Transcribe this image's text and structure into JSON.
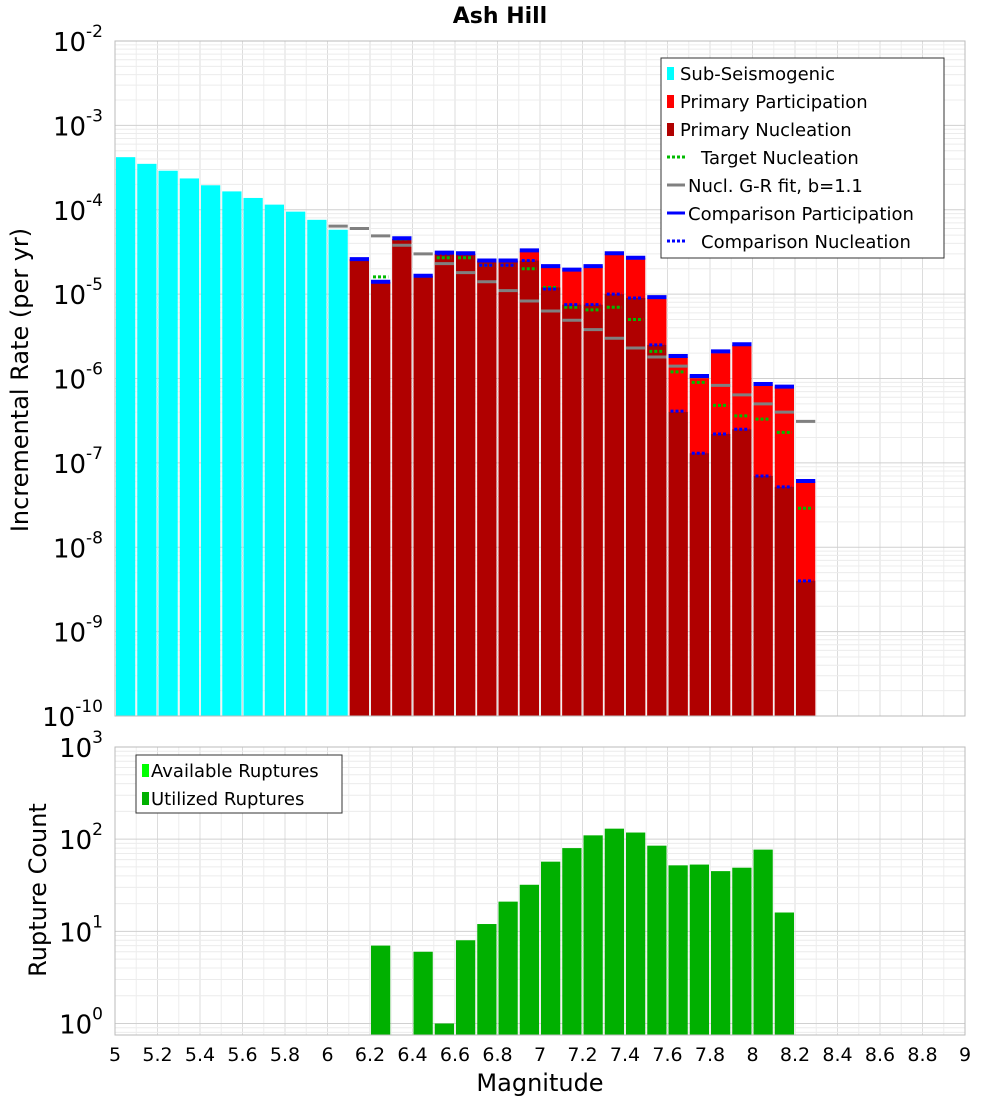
{
  "chart_data": [
    {
      "type": "bar",
      "title": "Ash Hill",
      "ylabel": "Incremental Rate (per yr)",
      "xlabel": "",
      "yscale": "log",
      "ylim": [
        1e-10,
        0.01
      ],
      "xlim": [
        5,
        9
      ],
      "grid": true,
      "legend_position": "top-right",
      "y_tick_labels": [
        {
          "base": "10",
          "exp": "-10",
          "value": 1e-10
        },
        {
          "base": "10",
          "exp": "-9",
          "value": 1e-09
        },
        {
          "base": "10",
          "exp": "-8",
          "value": 1e-08
        },
        {
          "base": "10",
          "exp": "-7",
          "value": 1e-07
        },
        {
          "base": "10",
          "exp": "-6",
          "value": 1e-06
        },
        {
          "base": "10",
          "exp": "-5",
          "value": 1e-05
        },
        {
          "base": "10",
          "exp": "-4",
          "value": 0.0001
        },
        {
          "base": "10",
          "exp": "-3",
          "value": 0.001
        },
        {
          "base": "10",
          "exp": "-2",
          "value": 0.01
        }
      ],
      "colors": {
        "sub_seismogenic": "#00ffff",
        "primary_participation": "#ff0000",
        "primary_nucleation": "#b00000",
        "target_nucleation": "#00bb00",
        "gr_fit": "#808080",
        "comparison": "#0000ff"
      },
      "bin_width": 0.1,
      "legend": [
        {
          "label": "Sub-Seismogenic",
          "kind": "box",
          "color": "#00ffff"
        },
        {
          "label": "Primary Participation",
          "kind": "box",
          "color": "#ff0000"
        },
        {
          "label": "Primary Nucleation",
          "kind": "box",
          "color": "#b00000"
        },
        {
          "label": "Target Nucleation",
          "kind": "dot",
          "color": "#00bb00"
        },
        {
          "label": "Nucl. G-R fit, b=1.1",
          "kind": "line",
          "color": "#808080"
        },
        {
          "label": "Comparison Participation",
          "kind": "line",
          "color": "#0000ff"
        },
        {
          "label": "Comparison Nucleation",
          "kind": "dot",
          "color": "#0000ff"
        }
      ],
      "series": [
        {
          "name": "Sub-Seismogenic",
          "x": [
            5.05,
            5.15,
            5.25,
            5.35,
            5.45,
            5.55,
            5.65,
            5.75,
            5.85,
            5.95,
            6.05
          ],
          "values": [
            0.00042,
            0.00035,
            0.00029,
            0.000235,
            0.000195,
            0.000165,
            0.000138,
            0.000115,
            9.5e-05,
            7.6e-05,
            5.8e-05
          ]
        },
        {
          "name": "Primary Participation",
          "x": [
            6.15,
            6.25,
            6.35,
            6.45,
            6.55,
            6.65,
            6.75,
            6.85,
            6.95,
            7.05,
            7.15,
            7.25,
            7.35,
            7.45,
            7.55,
            7.65,
            7.75,
            7.85,
            7.95,
            8.05,
            8.15,
            8.25
          ],
          "values": [
            2.6e-05,
            1.4e-05,
            4.5e-05,
            1.65e-05,
            3e-05,
            3e-05,
            2.5e-05,
            2.5e-05,
            3.2e-05,
            2.1e-05,
            1.95e-05,
            2.15e-05,
            3e-05,
            2.7e-05,
            9e-06,
            1.8e-06,
            1.05e-06,
            2e-06,
            2.5e-06,
            8.5e-07,
            8e-07,
            6e-08
          ]
        },
        {
          "name": "Primary Nucleation",
          "x": [
            6.15,
            6.25,
            6.35,
            6.45,
            6.55,
            6.65,
            6.75,
            6.85,
            6.95,
            7.05,
            7.15,
            7.25,
            7.35,
            7.45,
            7.55,
            7.65,
            7.75,
            7.85,
            7.95,
            8.05,
            8.15,
            8.25
          ],
          "values": [
            2.6e-05,
            1.4e-05,
            4.5e-05,
            1.65e-05,
            3e-05,
            3e-05,
            2.5e-05,
            2.5e-05,
            2.5e-05,
            1.2e-05,
            7.5e-06,
            7.5e-06,
            1e-05,
            9e-06,
            2.5e-06,
            4e-07,
            1.3e-07,
            2.2e-07,
            2.5e-07,
            7e-08,
            5.2e-08,
            4e-09
          ]
        },
        {
          "name": "Target Nucleation",
          "x": [
            6.15,
            6.25,
            6.35,
            6.45,
            6.55,
            6.65,
            6.75,
            6.85,
            6.95,
            7.05,
            7.15,
            7.25,
            7.35,
            7.45,
            7.55,
            7.65,
            7.75,
            7.85,
            7.95,
            8.05,
            8.15,
            8.25
          ],
          "values": [
            2.6e-05,
            1.6e-05,
            4.5e-05,
            1.65e-05,
            2.7e-05,
            2.7e-05,
            2.2e-05,
            2.2e-05,
            2e-05,
            1.2e-05,
            7e-06,
            6.5e-06,
            7e-06,
            5e-06,
            2.1e-06,
            1.2e-06,
            9e-07,
            4.8e-07,
            3.6e-07,
            3.3e-07,
            2.3e-07,
            2.9e-08
          ]
        },
        {
          "name": "Nucl. G-R fit, b=1.1",
          "x": [
            6.05,
            6.15,
            6.25,
            6.35,
            6.45,
            6.55,
            6.65,
            6.75,
            6.85,
            6.95,
            7.05,
            7.15,
            7.25,
            7.35,
            7.45,
            7.55,
            7.65,
            7.75,
            7.85,
            7.95,
            8.05,
            8.15,
            8.25
          ],
          "values": [
            6.4e-05,
            6e-05,
            4.9e-05,
            3.8e-05,
            3e-05,
            2.3e-05,
            1.8e-05,
            1.4e-05,
            1.1e-05,
            8.3e-06,
            6.3e-06,
            4.9e-06,
            3.8e-06,
            3e-06,
            2.3e-06,
            1.8e-06,
            1.4e-06,
            1.05e-06,
            8.3e-07,
            6.4e-07,
            5e-07,
            4e-07,
            3.1e-07
          ]
        },
        {
          "name": "Comparison Participation",
          "x": [
            6.15,
            6.25,
            6.35,
            6.45,
            6.55,
            6.65,
            6.75,
            6.85,
            6.95,
            7.05,
            7.15,
            7.25,
            7.35,
            7.45,
            7.55,
            7.65,
            7.75,
            7.85,
            7.95,
            8.05,
            8.15,
            8.25
          ],
          "values": [
            2.6e-05,
            1.4e-05,
            4.6e-05,
            1.65e-05,
            3.1e-05,
            3.05e-05,
            2.5e-05,
            2.5e-05,
            3.3e-05,
            2.15e-05,
            1.95e-05,
            2.15e-05,
            3.05e-05,
            2.7e-05,
            9.2e-06,
            1.85e-06,
            1.07e-06,
            2.1e-06,
            2.55e-06,
            8.6e-07,
            8e-07,
            6.1e-08
          ]
        },
        {
          "name": "Comparison Nucleation",
          "x": [
            6.15,
            6.25,
            6.35,
            6.45,
            6.55,
            6.65,
            6.75,
            6.85,
            6.95,
            7.05,
            7.15,
            7.25,
            7.35,
            7.45,
            7.55,
            7.65,
            7.75,
            7.85,
            7.95,
            8.05,
            8.15,
            8.25
          ],
          "values": [
            2.6e-05,
            1.4e-05,
            4.6e-05,
            1.65e-05,
            3e-05,
            3e-05,
            2.2e-05,
            2.2e-05,
            2.5e-05,
            1.15e-05,
            7.5e-06,
            7.5e-06,
            1e-05,
            9e-06,
            2.5e-06,
            4.1e-07,
            1.3e-07,
            2.2e-07,
            2.5e-07,
            7e-08,
            5.2e-08,
            4e-09
          ]
        }
      ]
    },
    {
      "type": "bar",
      "title": "",
      "xlabel": "Magnitude",
      "ylabel": "Rupture Count",
      "yscale": "log",
      "ylim": [
        0.75,
        1000
      ],
      "xlim": [
        5,
        9
      ],
      "grid": true,
      "legend_position": "top-left",
      "x_tick_labels": [
        "5",
        "5.2",
        "5.4",
        "5.6",
        "5.8",
        "6",
        "6.2",
        "6.4",
        "6.6",
        "6.8",
        "7",
        "7.2",
        "7.4",
        "7.6",
        "7.8",
        "8",
        "8.2",
        "8.4",
        "8.6",
        "8.8",
        "9"
      ],
      "y_tick_labels": [
        {
          "base": "10",
          "exp": "0",
          "value": 1
        },
        {
          "base": "10",
          "exp": "1",
          "value": 10
        },
        {
          "base": "10",
          "exp": "2",
          "value": 100
        },
        {
          "base": "10",
          "exp": "3",
          "value": 1000
        }
      ],
      "colors": {
        "available": "#00ff00",
        "utilized": "#00b000"
      },
      "bin_width": 0.1,
      "legend": [
        {
          "label": "Available Ruptures",
          "kind": "box",
          "color": "#00ff00"
        },
        {
          "label": "Utilized Ruptures",
          "kind": "box",
          "color": "#00b000"
        }
      ],
      "series": [
        {
          "name": "Utilized Ruptures",
          "x": [
            6.25,
            6.45,
            6.55,
            6.65,
            6.75,
            6.85,
            6.95,
            7.05,
            7.15,
            7.25,
            7.35,
            7.45,
            7.55,
            7.65,
            7.75,
            7.85,
            7.95,
            8.05,
            8.15
          ],
          "values": [
            7,
            6,
            1,
            8,
            12,
            21,
            32,
            57,
            80,
            110,
            130,
            118,
            85,
            52,
            53,
            45,
            49,
            77,
            16
          ]
        }
      ]
    }
  ]
}
